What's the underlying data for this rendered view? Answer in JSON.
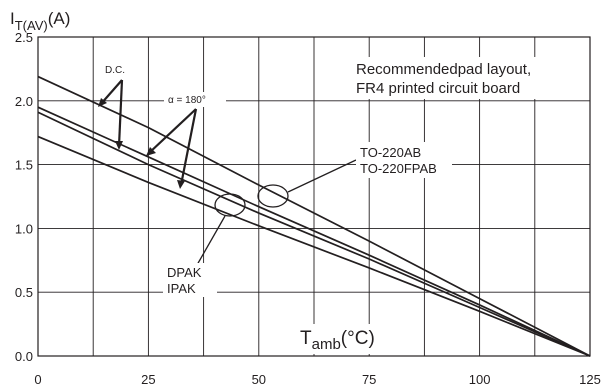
{
  "chart_data": {
    "type": "line",
    "ylabel": {
      "main": "I",
      "sub": "T(AV)",
      "unit": "(A)"
    },
    "xlabel": {
      "main": "T",
      "sub": "amb",
      "unit": "(°C)"
    },
    "xlim": [
      0,
      125
    ],
    "ylim": [
      0,
      2.5
    ],
    "x_ticks": [
      0,
      25,
      50,
      75,
      100,
      125
    ],
    "y_ticks": [
      0.0,
      0.5,
      1.0,
      1.5,
      2.0,
      2.5
    ],
    "x_tick_labels": [
      "0",
      "25",
      "50",
      "75",
      "100",
      "125"
    ],
    "y_tick_labels": [
      "0.0",
      "0.5",
      "1.0",
      "1.5",
      "2.0",
      "2.5"
    ],
    "grid": true,
    "series": [
      {
        "label": "TO-220AB D.C.",
        "x": [
          0,
          25,
          50,
          75,
          100,
          125
        ],
        "y": [
          2.19,
          1.79,
          1.34,
          0.9,
          0.45,
          0.0
        ]
      },
      {
        "label": "TO-220AB α = 180°",
        "x": [
          0,
          25,
          50,
          75,
          100,
          125
        ],
        "y": [
          1.95,
          1.56,
          1.17,
          0.79,
          0.4,
          0.0
        ]
      },
      {
        "label": "DPAK D.C.",
        "x": [
          0,
          25,
          50,
          75,
          100,
          125
        ],
        "y": [
          1.91,
          1.5,
          1.12,
          0.76,
          0.38,
          0.0
        ]
      },
      {
        "label": "DPAK α = 180°",
        "x": [
          0,
          25,
          50,
          75,
          100,
          125
        ],
        "y": [
          1.72,
          1.36,
          1.02,
          0.69,
          0.35,
          0.0
        ]
      }
    ],
    "annotations": {
      "dc": "D.C.",
      "alpha": "α = 180°",
      "note_line1": "Recommendedpad layout,",
      "note_line2": "FR4 printed circuit board",
      "to220_line1": "TO-220AB",
      "to220_line2": "TO-220FPAB",
      "dpak_line1": "DPAK",
      "dpak_line2": "IPAK"
    }
  }
}
